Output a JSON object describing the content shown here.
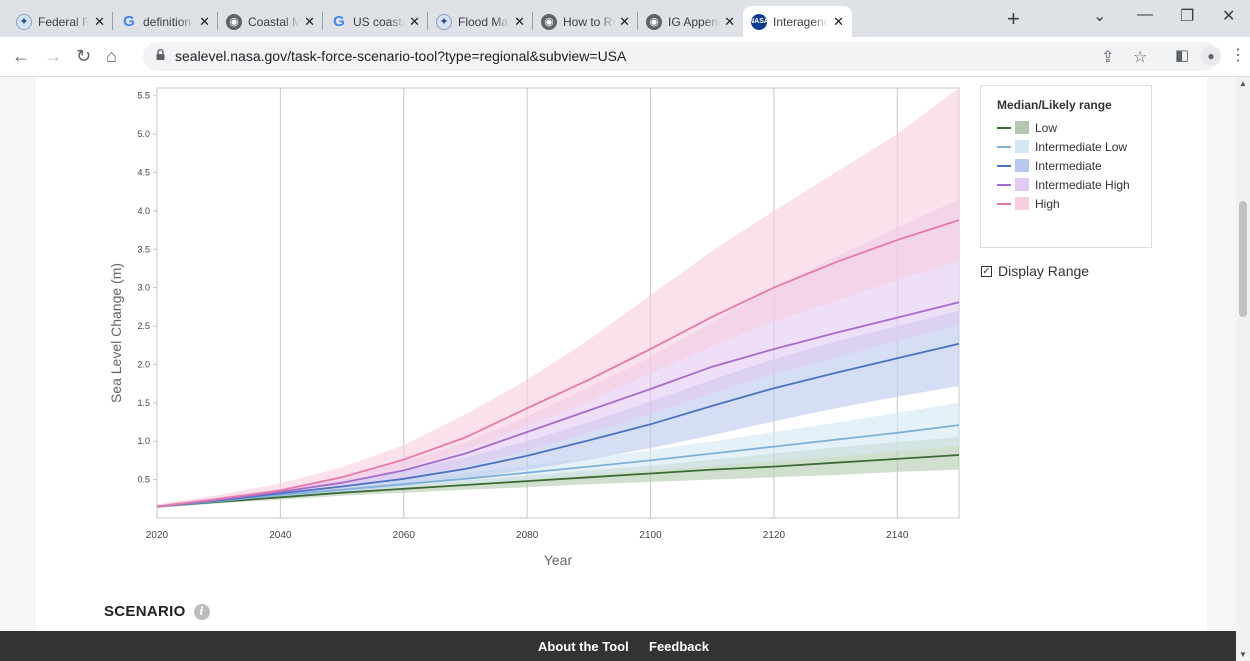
{
  "browser": {
    "tabs": [
      {
        "title": "Federal Floo",
        "favicon": "fema-seal-icon"
      },
      {
        "title": "definition o",
        "favicon": "google-icon"
      },
      {
        "title": "Coastal Ma",
        "favicon": "globe-icon"
      },
      {
        "title": "US coastal",
        "favicon": "google-icon"
      },
      {
        "title": "Flood Map",
        "favicon": "fema-seal-icon"
      },
      {
        "title": "How to Rea",
        "favicon": "globe-icon"
      },
      {
        "title": "IG Appendi",
        "favicon": "globe-icon"
      },
      {
        "title": "Interagency",
        "favicon": "nasa-icon",
        "active": true
      }
    ],
    "url": "sealevel.nasa.gov/task-force-scenario-tool?type=regional&subview=USA"
  },
  "legend": {
    "title": "Median/Likely range",
    "items": [
      {
        "label": "Low",
        "line": "#3d6b35",
        "box": "#b3c9ad"
      },
      {
        "label": "Intermediate Low",
        "line": "#7fb0d8",
        "box": "#d4e7f4"
      },
      {
        "label": "Intermediate",
        "line": "#4a72c4",
        "box": "#b9c8ee"
      },
      {
        "label": "Intermediate High",
        "line": "#a66bcf",
        "box": "#e2c8f2"
      },
      {
        "label": "High",
        "line": "#e879a8",
        "box": "#f9cde0"
      }
    ]
  },
  "display_range": {
    "label": "Display Range",
    "checked": true
  },
  "scenario": {
    "label": "SCENARIO",
    "info": "i"
  },
  "footer": {
    "links": [
      "About the Tool",
      "Feedback"
    ]
  },
  "chart_data": {
    "type": "line",
    "title": "",
    "xlabel": "Year",
    "ylabel": "Sea Level Change (m)",
    "xlim": [
      2020,
      2150
    ],
    "ylim": [
      0,
      5.6
    ],
    "xticks": [
      2020,
      2040,
      2060,
      2080,
      2100,
      2120,
      2140
    ],
    "yticks": [
      0.5,
      1.0,
      1.5,
      2.0,
      2.5,
      3.0,
      3.5,
      4.0,
      4.5,
      5.0,
      5.5
    ],
    "x": [
      2020,
      2030,
      2040,
      2050,
      2060,
      2070,
      2080,
      2090,
      2100,
      2110,
      2120,
      2130,
      2140,
      2150
    ],
    "series": [
      {
        "name": "Low",
        "color": "#3d6b35",
        "fill": "#b3c9ad",
        "median": [
          0.15,
          0.21,
          0.27,
          0.33,
          0.38,
          0.43,
          0.48,
          0.53,
          0.58,
          0.63,
          0.67,
          0.72,
          0.77,
          0.82
        ],
        "lower": [
          0.13,
          0.19,
          0.24,
          0.29,
          0.33,
          0.37,
          0.4,
          0.44,
          0.47,
          0.5,
          0.53,
          0.56,
          0.6,
          0.63
        ],
        "upper": [
          0.17,
          0.23,
          0.29,
          0.36,
          0.42,
          0.49,
          0.55,
          0.62,
          0.68,
          0.76,
          0.84,
          0.92,
          0.99,
          1.05
        ]
      },
      {
        "name": "Intermediate Low",
        "color": "#7fb0d8",
        "fill": "#d4e7f4",
        "median": [
          0.15,
          0.22,
          0.3,
          0.37,
          0.44,
          0.51,
          0.59,
          0.67,
          0.75,
          0.84,
          0.93,
          1.02,
          1.11,
          1.21
        ],
        "lower": [
          0.13,
          0.2,
          0.26,
          0.32,
          0.38,
          0.44,
          0.5,
          0.56,
          0.62,
          0.68,
          0.74,
          0.8,
          0.87,
          0.94
        ],
        "upper": [
          0.17,
          0.25,
          0.33,
          0.41,
          0.5,
          0.59,
          0.68,
          0.78,
          0.88,
          1.0,
          1.12,
          1.24,
          1.37,
          1.5
        ]
      },
      {
        "name": "Intermediate",
        "color": "#4a72c4",
        "fill": "#b9c8ee",
        "median": [
          0.15,
          0.23,
          0.32,
          0.41,
          0.51,
          0.64,
          0.81,
          1.01,
          1.22,
          1.46,
          1.69,
          1.89,
          2.08,
          2.27
        ],
        "lower": [
          0.13,
          0.2,
          0.27,
          0.34,
          0.42,
          0.51,
          0.63,
          0.76,
          0.91,
          1.08,
          1.26,
          1.43,
          1.58,
          1.72
        ],
        "upper": [
          0.17,
          0.26,
          0.37,
          0.49,
          0.62,
          0.79,
          1.0,
          1.25,
          1.52,
          1.8,
          2.07,
          2.3,
          2.5,
          2.7
        ]
      },
      {
        "name": "Intermediate High",
        "color": "#a66bcf",
        "fill": "#e2c8f2",
        "median": [
          0.15,
          0.24,
          0.34,
          0.46,
          0.62,
          0.84,
          1.12,
          1.4,
          1.68,
          1.97,
          2.2,
          2.41,
          2.61,
          2.81
        ],
        "lower": [
          0.13,
          0.21,
          0.29,
          0.39,
          0.51,
          0.67,
          0.88,
          1.11,
          1.35,
          1.62,
          1.88,
          2.09,
          2.31,
          2.52
        ],
        "upper": [
          0.17,
          0.27,
          0.38,
          0.54,
          0.73,
          0.99,
          1.32,
          1.7,
          2.1,
          2.55,
          3.0,
          3.4,
          3.78,
          4.15
        ]
      },
      {
        "name": "High",
        "color": "#e879a8",
        "fill": "#f9cde0",
        "median": [
          0.15,
          0.25,
          0.36,
          0.53,
          0.76,
          1.05,
          1.43,
          1.8,
          2.2,
          2.62,
          3.0,
          3.33,
          3.62,
          3.88
        ],
        "lower": [
          0.13,
          0.22,
          0.31,
          0.45,
          0.64,
          0.89,
          1.2,
          1.52,
          1.88,
          2.24,
          2.56,
          2.83,
          3.1,
          3.35
        ],
        "upper": [
          0.18,
          0.3,
          0.45,
          0.66,
          0.95,
          1.35,
          1.8,
          2.32,
          2.9,
          3.48,
          4.0,
          4.5,
          5.0,
          5.6
        ]
      }
    ],
    "grid": "vertical",
    "legend_placement": "right"
  }
}
